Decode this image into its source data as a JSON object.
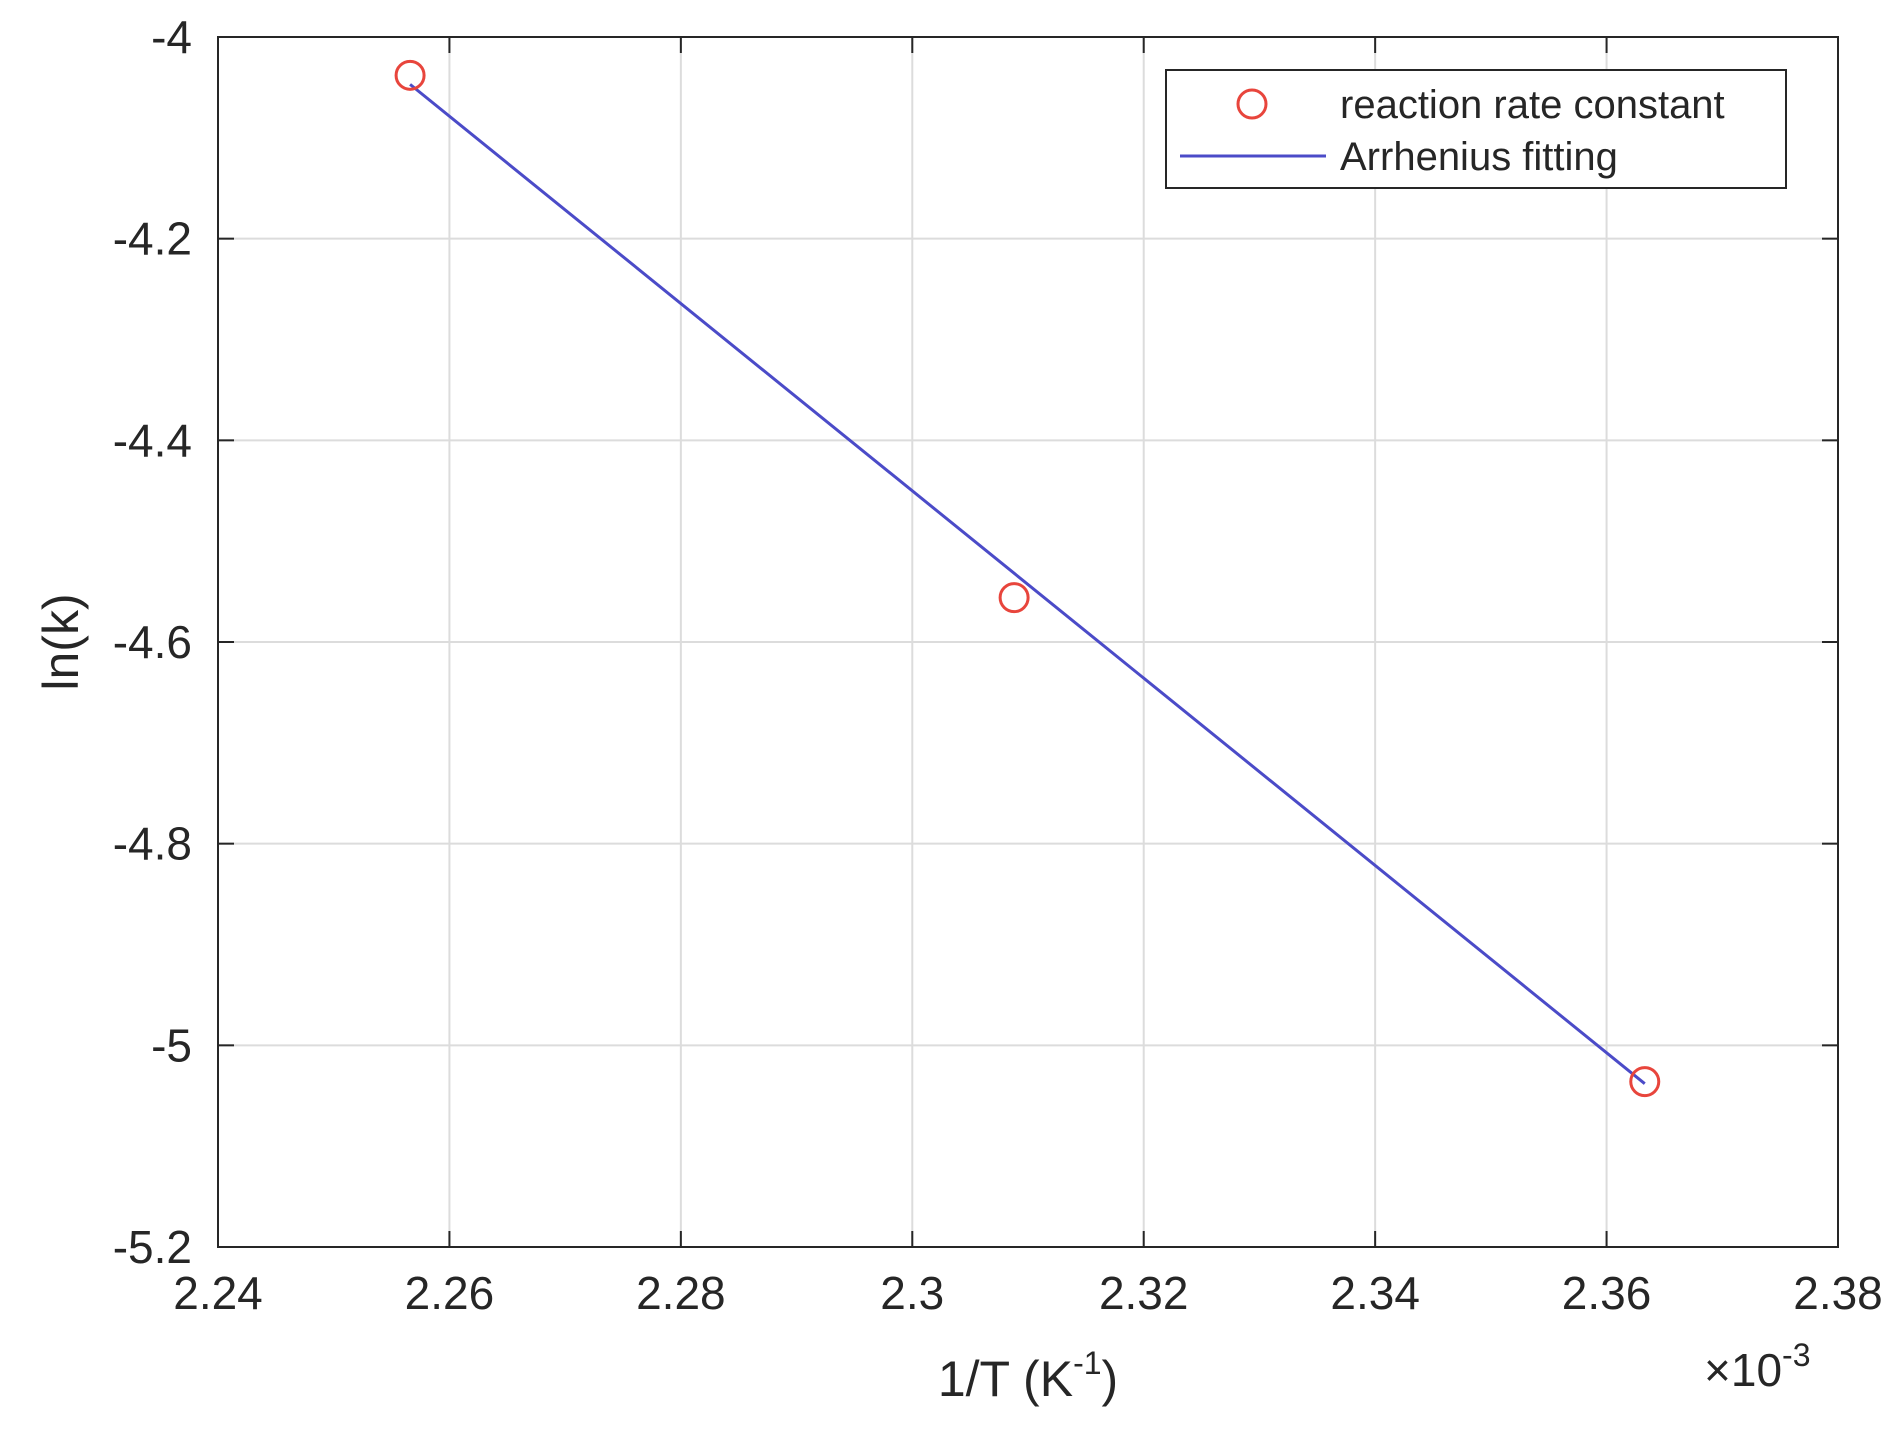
{
  "chart_data": {
    "type": "scatter",
    "title": "",
    "xlabel": "1/T (K",
    "xlabel_superscript": "-1",
    "xlabel_suffix": ")",
    "ylabel": "ln(k)",
    "x_exponent_label": "×10",
    "x_exponent_power": "-3",
    "xlim": [
      2.24,
      2.38
    ],
    "ylim": [
      -5.2,
      -4.0
    ],
    "x_ticks": [
      2.24,
      2.26,
      2.28,
      2.3,
      2.32,
      2.34,
      2.36,
      2.38
    ],
    "x_tick_labels": [
      "2.24",
      "2.26",
      "2.28",
      "2.3",
      "2.32",
      "2.34",
      "2.36",
      "2.38"
    ],
    "y_ticks": [
      -4.0,
      -4.2,
      -4.4,
      -4.6,
      -4.8,
      -5.0,
      -5.2
    ],
    "y_tick_labels": [
      "-4",
      "-4.2",
      "-4.4",
      "-4.6",
      "-4.8",
      "-5",
      "-5.2"
    ],
    "grid": true,
    "legend_position": "top-right",
    "series": [
      {
        "name": "reaction rate constant",
        "kind": "markers",
        "marker": "circle",
        "color": "#e8453c",
        "x": [
          2.2566,
          2.3088,
          2.3633
        ],
        "y": [
          -4.038,
          -4.556,
          -5.036
        ]
      },
      {
        "name": "Arrhenius fitting",
        "kind": "line",
        "color": "#4b4bc8",
        "x": [
          2.2566,
          2.3633
        ],
        "y": [
          -4.047,
          -5.038
        ]
      }
    ]
  }
}
